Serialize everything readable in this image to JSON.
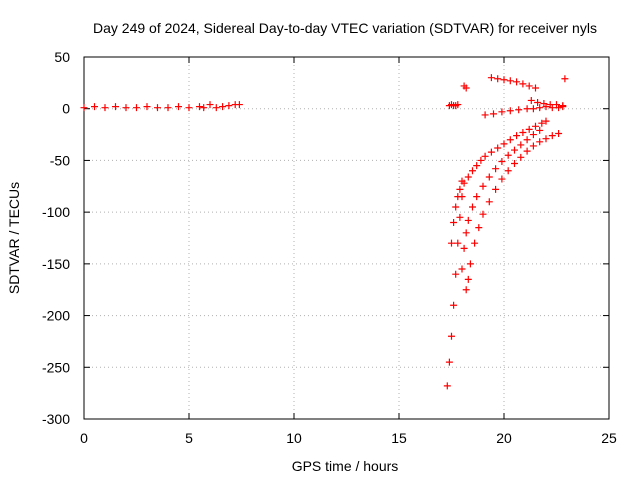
{
  "chart_data": {
    "type": "scatter",
    "title": "Day 249 of 2024, Sidereal Day-to-day VTEC variation (SDTVAR) for receiver nyls",
    "xlabel": "GPS time / hours",
    "ylabel": "SDTVAR / TECUs",
    "xlim": [
      0,
      25
    ],
    "ylim": [
      -300,
      50
    ],
    "xticks": [
      0,
      5,
      10,
      15,
      20,
      25
    ],
    "yticks": [
      50,
      0,
      -50,
      -100,
      -150,
      -200,
      -250,
      -300
    ],
    "grid": true,
    "marker": "plus",
    "color": "#ff0000",
    "series": [
      {
        "segments": [
          {
            "x": [
              0,
              0.5,
              1,
              1.5,
              2,
              2.5,
              3,
              3.5,
              4,
              4.5,
              5,
              5.5
            ],
            "y": [
              1,
              2,
              1,
              2,
              1,
              1,
              2,
              1,
              1,
              2,
              1,
              2
            ]
          },
          {
            "x": [
              5.7,
              6,
              6.3,
              6.6,
              6.9,
              7.2,
              7.4
            ],
            "y": [
              1,
              4,
              1,
              2,
              3,
              4,
              4
            ]
          },
          {
            "x": [
              17.3,
              17.4,
              17.5,
              17.6,
              17.7,
              17.8,
              17.9,
              18.0,
              18.1,
              18.3,
              18.5,
              18.7,
              18.9,
              19.1,
              19.4,
              19.7,
              20.0,
              20.3,
              20.6,
              20.9,
              21.2,
              21.5,
              21.8,
              22.0
            ],
            "y": [
              -268,
              -245,
              -220,
              -190,
              -160,
              -130,
              -105,
              -85,
              -72,
              -66,
              -60,
              -55,
              -50,
              -46,
              -42,
              -38,
              -34,
              -30,
              -26,
              -23,
              -20,
              -17,
              -14,
              -12
            ]
          },
          {
            "x": [
              17.5,
              17.6,
              17.7,
              17.8,
              17.9,
              18.0
            ],
            "y": [
              -130,
              -110,
              -95,
              -85,
              -78,
              -70
            ]
          },
          {
            "x": [
              18.0,
              18.1,
              18.2,
              18.3,
              18.5,
              18.7,
              19.0,
              19.3,
              19.6,
              19.9,
              20.2,
              20.5,
              20.8,
              21.1,
              21.4,
              21.7
            ],
            "y": [
              -155,
              -135,
              -120,
              -108,
              -95,
              -85,
              -75,
              -66,
              -58,
              -51,
              -45,
              -40,
              -35,
              -30,
              -25,
              -21
            ]
          },
          {
            "x": [
              18.2,
              18.3,
              18.4,
              18.6,
              18.8,
              19.0,
              19.3,
              19.6,
              19.9,
              20.2,
              20.5,
              20.8,
              21.1,
              21.4,
              21.7,
              22.0,
              22.3,
              22.6
            ],
            "y": [
              -175,
              -165,
              -150,
              -130,
              -115,
              -102,
              -90,
              -78,
              -68,
              -60,
              -53,
              -47,
              -41,
              -36,
              -32,
              -29,
              -26,
              -24
            ]
          },
          {
            "x": [
              17.4,
              17.5,
              17.6,
              17.7,
              17.8
            ],
            "y": [
              3,
              4,
              3,
              3,
              4
            ]
          },
          {
            "x": [
              18.1,
              18.2
            ],
            "y": [
              22,
              20
            ]
          },
          {
            "x": [
              19.1,
              19.5,
              19.9,
              20.3,
              20.7,
              21.1,
              21.4,
              21.7,
              22.0,
              22.3,
              22.6,
              22.8
            ],
            "y": [
              -6,
              -5,
              -3,
              -2,
              -1,
              0,
              0,
              1,
              2,
              1,
              1,
              2
            ]
          },
          {
            "x": [
              19.4,
              19.7,
              20,
              20.3,
              20.6,
              20.9,
              21.2,
              21.5
            ],
            "y": [
              30,
              29,
              28,
              27,
              26,
              24,
              22,
              20
            ]
          },
          {
            "x": [
              21.3,
              21.6,
              21.9,
              22.2,
              22.5,
              22.8
            ],
            "y": [
              8,
              6,
              5,
              4,
              4,
              3
            ]
          },
          {
            "x": [
              22.9
            ],
            "y": [
              29
            ]
          }
        ]
      }
    ]
  }
}
